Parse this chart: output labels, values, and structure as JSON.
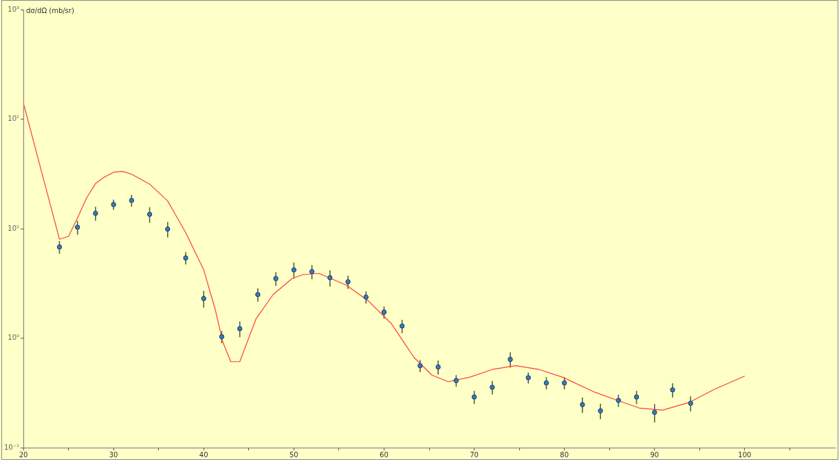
{
  "chart_data": {
    "type": "scatter",
    "ylabel": "dσ/dΩ (mb/sr)",
    "log": "y",
    "grid": false,
    "legend": false,
    "xlim": [
      20,
      110
    ],
    "xticks": [
      20,
      {
        "value": 25,
        "label": null
      },
      30,
      {
        "value": 35,
        "label": null
      },
      40,
      {
        "value": 45,
        "label": null
      },
      50,
      {
        "value": 55,
        "label": null
      },
      60,
      {
        "value": 65,
        "label": null
      },
      70,
      {
        "value": 75,
        "label": null
      },
      80,
      {
        "value": 85,
        "label": null
      },
      90,
      {
        "value": 95,
        "label": null
      },
      100,
      {
        "value": 105,
        "label": null
      }
    ],
    "ylim": [
      0.1,
      1000
    ],
    "yticks": [
      {
        "value": 0.1,
        "label": "10⁻¹"
      },
      {
        "value": 1,
        "label": "10⁰"
      },
      {
        "value": 10,
        "label": "10¹"
      },
      {
        "value": 100,
        "label": "10²"
      },
      {
        "value": 1000,
        "label": "10³"
      }
    ],
    "series": [
      {
        "type": "scatter",
        "marker": "circle",
        "color": "#2f7fc1",
        "x": [
          24,
          26,
          28,
          30,
          32,
          34,
          36,
          38,
          40,
          42,
          44,
          46,
          48,
          50,
          52,
          54,
          56,
          58,
          60,
          62,
          64,
          66,
          68,
          70,
          72,
          74,
          76,
          78,
          80,
          82,
          84,
          86,
          88,
          90,
          92,
          94
        ],
        "values": [
          6.8,
          10.3,
          13.8,
          16.6,
          18.1,
          13.5,
          9.9,
          5.4,
          2.3,
          1.03,
          1.22,
          2.5,
          3.5,
          4.2,
          4.05,
          3.56,
          3.27,
          2.37,
          1.73,
          1.29,
          0.56,
          0.545,
          0.41,
          0.29,
          0.356,
          0.64,
          0.435,
          0.39,
          0.39,
          0.247,
          0.217,
          0.27,
          0.29,
          0.21,
          0.337,
          0.254
        ],
        "errors": [
          0.9,
          1.5,
          2.0,
          1.8,
          2.2,
          2.2,
          1.6,
          0.7,
          0.4,
          0.13,
          0.2,
          0.35,
          0.5,
          0.7,
          0.6,
          0.6,
          0.45,
          0.3,
          0.22,
          0.18,
          0.07,
          0.08,
          0.05,
          0.04,
          0.05,
          0.1,
          0.05,
          0.05,
          0.05,
          0.04,
          0.035,
          0.035,
          0.04,
          0.04,
          0.05,
          0.04
        ]
      },
      {
        "type": "line",
        "marker": "none",
        "line_style": "solid",
        "color": "#ff3b3b",
        "x": [
          20,
          24,
          25,
          26,
          27,
          28,
          29,
          30,
          31,
          32,
          34,
          36,
          38,
          40,
          41.3,
          42.1,
          43,
          44,
          45.8,
          47.7,
          49.8,
          51,
          52.8,
          55.8,
          58.3,
          60.8,
          63.3,
          65.3,
          67.1,
          69.5,
          72.1,
          74.6,
          77.1,
          79.8,
          83.4,
          85.9,
          88.3,
          90.9,
          93.9,
          96.6,
          100
        ],
        "values": [
          140,
          8.0,
          8.5,
          12.5,
          19,
          25.8,
          29.6,
          32.7,
          33.3,
          31.4,
          25.5,
          17.9,
          9.2,
          4.2,
          1.8,
          0.93,
          0.61,
          0.61,
          1.5,
          2.5,
          3.5,
          3.8,
          3.9,
          3.05,
          2.17,
          1.36,
          0.67,
          0.46,
          0.4,
          0.44,
          0.52,
          0.56,
          0.52,
          0.44,
          0.32,
          0.27,
          0.23,
          0.22,
          0.26,
          0.34,
          0.45
        ]
      }
    ]
  }
}
